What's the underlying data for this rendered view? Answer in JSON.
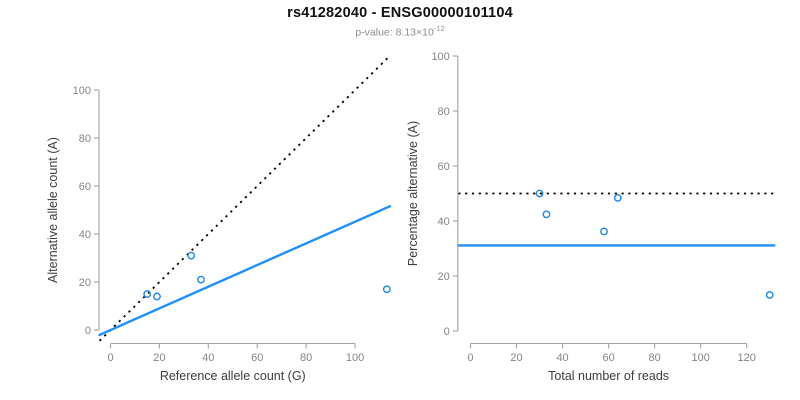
{
  "header": {
    "title": "rs41282040 - ENSG00000101104",
    "subtitle_prefix": "p-value: 8.13×10",
    "subtitle_exponent": "-12"
  },
  "colors": {
    "fit_line": "#1E90FF",
    "point": "#1C86EE",
    "reference_line": "#000000",
    "axis": "#a3a3a3",
    "tick_label": "#858585",
    "axis_title": "#3d3d3d",
    "title": "#111111",
    "subtitle": "#8e8e8e"
  },
  "chart_data": [
    {
      "id": "allele-counts",
      "type": "scatter",
      "xlabel": "Reference allele count (G)",
      "ylabel": "Alternative allele count (A)",
      "x_ticks": [
        0,
        20,
        40,
        60,
        80,
        100
      ],
      "y_ticks": [
        0,
        20,
        40,
        60,
        80,
        100
      ],
      "xlim": [
        -4.5,
        114.3
      ],
      "ylim": [
        -5.6,
        114.6
      ],
      "axis_x_span": [
        0,
        100
      ],
      "axis_y_span": [
        0,
        100
      ],
      "grid": false,
      "points": [
        [
          15,
          15
        ],
        [
          19,
          14
        ],
        [
          33,
          31
        ],
        [
          37,
          21
        ],
        [
          113,
          17
        ]
      ],
      "lines": [
        {
          "name": "identity-line",
          "style": "dotted",
          "color": "#000000",
          "x1": -4.5,
          "y1": -4.5,
          "x2": 113.8,
          "y2": 113.8
        },
        {
          "name": "allelic-ratio-line",
          "style": "solid",
          "color": "#1E90FF",
          "x1": -4.5,
          "y1": -2.03,
          "x2": 114.3,
          "y2": 51.6
        }
      ]
    },
    {
      "id": "percentage",
      "type": "scatter",
      "xlabel": "Total number of reads",
      "ylabel": "Percentage alternative (A)",
      "x_ticks": [
        0,
        20,
        40,
        60,
        80,
        100,
        120
      ],
      "y_ticks": [
        0,
        20,
        40,
        60,
        80,
        100
      ],
      "xlim": [
        -5.3,
        136.2
      ],
      "ylim": [
        -4,
        104
      ],
      "axis_x_span": [
        0,
        120
      ],
      "axis_y_span": [
        0,
        100
      ],
      "grid": false,
      "points": [
        [
          30,
          50
        ],
        [
          33,
          42.4
        ],
        [
          64,
          48.4
        ],
        [
          58,
          36.2
        ],
        [
          130,
          13.1
        ]
      ],
      "lines": [
        {
          "name": "fifty-percent-line",
          "style": "dotted",
          "color": "#000000",
          "x1": -5.3,
          "y1": 50,
          "x2": 132.5,
          "y2": 50
        },
        {
          "name": "mean-percentage-line",
          "style": "solid",
          "color": "#1E90FF",
          "x1": -5.3,
          "y1": 31.1,
          "x2": 132,
          "y2": 31.1
        }
      ]
    }
  ]
}
